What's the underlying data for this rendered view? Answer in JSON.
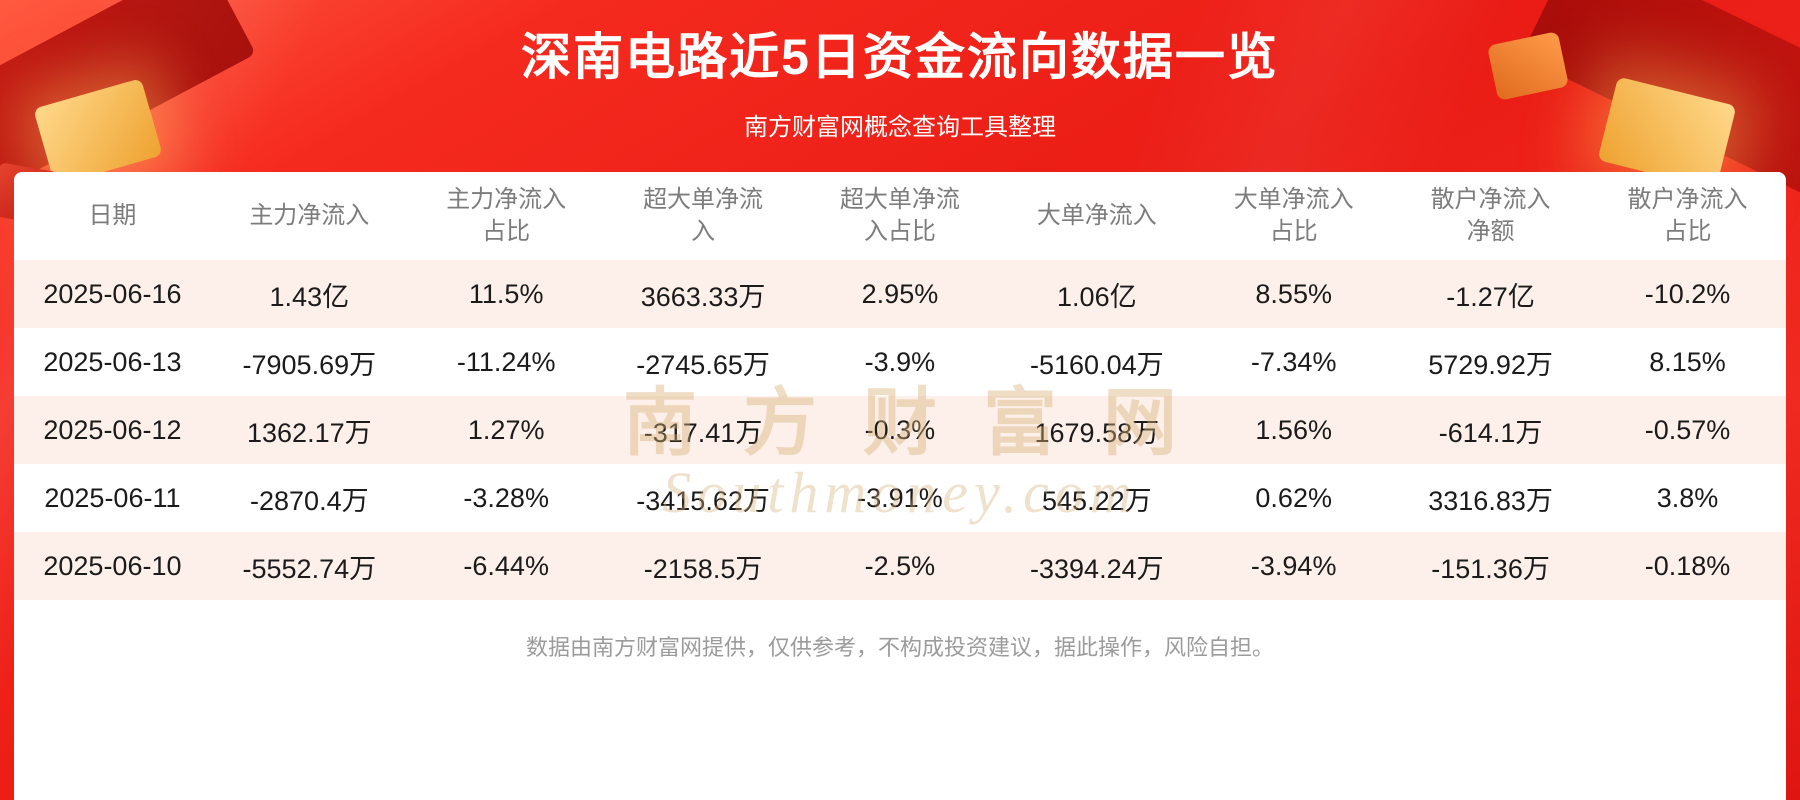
{
  "header": {
    "title": "深南电路近5日资金流向数据一览",
    "subtitle": "南方财富网概念查询工具整理"
  },
  "chart_data": {
    "type": "table",
    "title": "深南电路近5日资金流向数据一览",
    "columns": [
      "日期",
      "主力净流入",
      "主力净流入占比",
      "超大单净流入",
      "超大单净流入占比",
      "大单净流入",
      "大单净流入占比",
      "散户净流入净额",
      "散户净流入占比"
    ],
    "rows": [
      [
        "2025-06-16",
        "1.43亿",
        "11.5%",
        "3663.33万",
        "2.95%",
        "1.06亿",
        "8.55%",
        "-1.27亿",
        "-10.2%"
      ],
      [
        "2025-06-13",
        "-7905.69万",
        "-11.24%",
        "-2745.65万",
        "-3.9%",
        "-5160.04万",
        "-7.34%",
        "5729.92万",
        "8.15%"
      ],
      [
        "2025-06-12",
        "1362.17万",
        "1.27%",
        "-317.41万",
        "-0.3%",
        "1679.58万",
        "1.56%",
        "-614.1万",
        "-0.57%"
      ],
      [
        "2025-06-11",
        "-2870.4万",
        "-3.28%",
        "-3415.62万",
        "-3.91%",
        "545.22万",
        "0.62%",
        "3316.83万",
        "3.8%"
      ],
      [
        "2025-06-10",
        "-5552.74万",
        "-6.44%",
        "-2158.5万",
        "-2.5%",
        "-3394.24万",
        "-3.94%",
        "-151.36万",
        "-0.18%"
      ]
    ]
  },
  "watermark": {
    "line1": "南方财富网",
    "line2": "Southmoney.com"
  },
  "footer": {
    "text": "数据由南方财富网提供，仅供参考，不构成投资建议，据此操作，风险自担。"
  },
  "colors": {
    "background_red": "#ee1c16",
    "row_alt": "#fdf0ea",
    "title_text": "#ffffff",
    "header_text": "#7c7c7c",
    "body_text": "#1b1b1b",
    "disclaimer_text": "#9b9b9b",
    "watermark_gold": "#d6b076"
  }
}
